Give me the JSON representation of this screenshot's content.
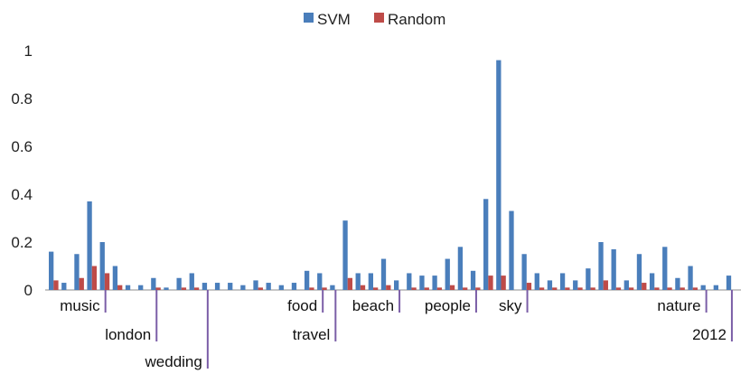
{
  "chart_data": {
    "type": "bar",
    "title": "",
    "xlabel": "",
    "ylabel": "",
    "ylim": [
      0,
      1
    ],
    "yticks": [
      "0",
      "0.2",
      "0.4",
      "0.6",
      "0.8",
      "1"
    ],
    "grid": false,
    "legend_position": "top-center",
    "series": [
      {
        "name": "SVM",
        "color": "#4a7ebb",
        "values": [
          0.16,
          0.03,
          0.15,
          0.37,
          0.2,
          0.1,
          0.02,
          0.02,
          0.05,
          0.01,
          0.05,
          0.07,
          0.03,
          0.03,
          0.03,
          0.02,
          0.04,
          0.03,
          0.02,
          0.03,
          0.08,
          0.07,
          0.02,
          0.29,
          0.07,
          0.07,
          0.13,
          0.04,
          0.07,
          0.06,
          0.06,
          0.13,
          0.18,
          0.08,
          0.38,
          0.96,
          0.33,
          0.15,
          0.07,
          0.04,
          0.07,
          0.04,
          0.09,
          0.2,
          0.17,
          0.04,
          0.15,
          0.07,
          0.18,
          0.05,
          0.1,
          0.02,
          0.02,
          0.06
        ]
      },
      {
        "name": "Random",
        "color": "#be4b48",
        "values": [
          0.04,
          0.0,
          0.05,
          0.1,
          0.07,
          0.02,
          0.0,
          0.0,
          0.01,
          0.0,
          0.01,
          0.01,
          0.0,
          0.0,
          0.0,
          0.0,
          0.01,
          0.0,
          0.0,
          0.0,
          0.01,
          0.01,
          0.0,
          0.05,
          0.02,
          0.01,
          0.02,
          0.0,
          0.01,
          0.01,
          0.01,
          0.02,
          0.01,
          0.01,
          0.06,
          0.06,
          0.0,
          0.03,
          0.01,
          0.01,
          0.01,
          0.01,
          0.01,
          0.04,
          0.01,
          0.01,
          0.03,
          0.01,
          0.01,
          0.01,
          0.01,
          0.0,
          0.0,
          0.0
        ]
      }
    ],
    "annotations": [
      {
        "label": "music",
        "index": 4,
        "row": 0
      },
      {
        "label": "london",
        "index": 8,
        "row": 1
      },
      {
        "label": "wedding",
        "index": 12,
        "row": 2
      },
      {
        "label": "food",
        "index": 21,
        "row": 0
      },
      {
        "label": "travel",
        "index": 22,
        "row": 1
      },
      {
        "label": "beach",
        "index": 27,
        "row": 0
      },
      {
        "label": "people",
        "index": 33,
        "row": 0
      },
      {
        "label": "sky",
        "index": 37,
        "row": 0
      },
      {
        "label": "nature",
        "index": 51,
        "row": 0
      },
      {
        "label": "2012",
        "index": 53,
        "row": 1
      }
    ]
  }
}
